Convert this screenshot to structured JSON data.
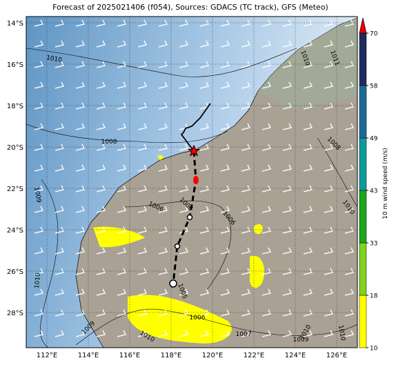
{
  "title": "Forecast of 2025021406 (f054), Sources: GDACS (TC track), GFS (Meteo)",
  "map": {
    "lonlim": [
      111,
      127
    ],
    "latlim": [
      -29.7,
      -13.7
    ],
    "xticks": [
      {
        "value": 112,
        "label": "112°E"
      },
      {
        "value": 114,
        "label": "114°E"
      },
      {
        "value": 116,
        "label": "116°E"
      },
      {
        "value": 118,
        "label": "118°E"
      },
      {
        "value": 120,
        "label": "120°E"
      },
      {
        "value": 122,
        "label": "122°E"
      },
      {
        "value": 124,
        "label": "124°E"
      },
      {
        "value": 126,
        "label": "126°E"
      }
    ],
    "yticks": [
      {
        "value": -14,
        "label": "14°S"
      },
      {
        "value": -16,
        "label": "16°S"
      },
      {
        "value": -18,
        "label": "18°S"
      },
      {
        "value": -20,
        "label": "20°S"
      },
      {
        "value": -22,
        "label": "22°S"
      },
      {
        "value": -24,
        "label": "24°S"
      },
      {
        "value": -26,
        "label": "26°S"
      },
      {
        "value": -28,
        "label": "28°S"
      }
    ],
    "contour_labels": [
      1010,
      1010,
      1011,
      1008,
      1008,
      1009,
      1006,
      1006,
      1006,
      1010,
      1010,
      1005,
      1006,
      1009,
      1010,
      1007,
      1010,
      1009,
      1010
    ],
    "track_history": {
      "lon": [
        119.9,
        119.4,
        119.0,
        118.7,
        118.6,
        118.5,
        119.1
      ],
      "lat": [
        -17.9,
        -18.6,
        -19.0,
        -19.1,
        -19.3,
        -19.4,
        -20.2
      ]
    },
    "track_forecast": {
      "lon": [
        119.1,
        119.2,
        118.9,
        118.3,
        118.1
      ],
      "lat": [
        -20.2,
        -21.6,
        -23.4,
        -24.8,
        -26.6
      ]
    }
  },
  "colorbar": {
    "label": "10 m wind speed (m/s)",
    "levels": [
      10,
      18,
      33,
      43,
      49,
      58,
      70
    ],
    "colors": [
      "#ffff00",
      "#7fd31d",
      "#1aa51a",
      "#0f9a9a",
      "#1c6b96",
      "#1d2c60"
    ],
    "extend_color": "#ee0000"
  }
}
